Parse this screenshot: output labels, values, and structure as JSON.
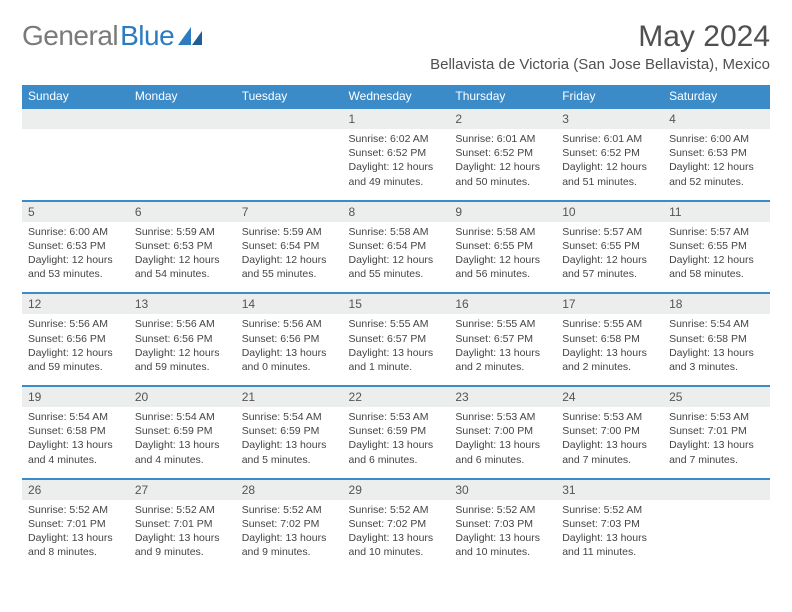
{
  "brand": {
    "part1": "General",
    "part2": "Blue"
  },
  "title": "May 2024",
  "location": "Bellavista de Victoria (San Jose Bellavista), Mexico",
  "dayNames": [
    "Sunday",
    "Monday",
    "Tuesday",
    "Wednesday",
    "Thursday",
    "Friday",
    "Saturday"
  ],
  "colors": {
    "header_bg": "#3b8bc9",
    "header_text": "#ffffff",
    "daynum_bg": "#eceded",
    "border": "#3b8bc9",
    "text": "#444444",
    "title": "#505050",
    "logo_gray": "#7a7a7a",
    "logo_blue": "#2d7bc0",
    "background": "#ffffff"
  },
  "typography": {
    "title_fontsize": 30,
    "location_fontsize": 15,
    "dayhead_fontsize": 12,
    "daynum_fontsize": 12,
    "detail_fontsize": 10.5
  },
  "layout": {
    "columns": 7,
    "rows": 5,
    "cell_width_pct": 14.28
  },
  "weeks": [
    [
      {
        "n": "",
        "sr": "",
        "ss": "",
        "dl": ""
      },
      {
        "n": "",
        "sr": "",
        "ss": "",
        "dl": ""
      },
      {
        "n": "",
        "sr": "",
        "ss": "",
        "dl": ""
      },
      {
        "n": "1",
        "sr": "Sunrise: 6:02 AM",
        "ss": "Sunset: 6:52 PM",
        "dl": "Daylight: 12 hours and 49 minutes."
      },
      {
        "n": "2",
        "sr": "Sunrise: 6:01 AM",
        "ss": "Sunset: 6:52 PM",
        "dl": "Daylight: 12 hours and 50 minutes."
      },
      {
        "n": "3",
        "sr": "Sunrise: 6:01 AM",
        "ss": "Sunset: 6:52 PM",
        "dl": "Daylight: 12 hours and 51 minutes."
      },
      {
        "n": "4",
        "sr": "Sunrise: 6:00 AM",
        "ss": "Sunset: 6:53 PM",
        "dl": "Daylight: 12 hours and 52 minutes."
      }
    ],
    [
      {
        "n": "5",
        "sr": "Sunrise: 6:00 AM",
        "ss": "Sunset: 6:53 PM",
        "dl": "Daylight: 12 hours and 53 minutes."
      },
      {
        "n": "6",
        "sr": "Sunrise: 5:59 AM",
        "ss": "Sunset: 6:53 PM",
        "dl": "Daylight: 12 hours and 54 minutes."
      },
      {
        "n": "7",
        "sr": "Sunrise: 5:59 AM",
        "ss": "Sunset: 6:54 PM",
        "dl": "Daylight: 12 hours and 55 minutes."
      },
      {
        "n": "8",
        "sr": "Sunrise: 5:58 AM",
        "ss": "Sunset: 6:54 PM",
        "dl": "Daylight: 12 hours and 55 minutes."
      },
      {
        "n": "9",
        "sr": "Sunrise: 5:58 AM",
        "ss": "Sunset: 6:55 PM",
        "dl": "Daylight: 12 hours and 56 minutes."
      },
      {
        "n": "10",
        "sr": "Sunrise: 5:57 AM",
        "ss": "Sunset: 6:55 PM",
        "dl": "Daylight: 12 hours and 57 minutes."
      },
      {
        "n": "11",
        "sr": "Sunrise: 5:57 AM",
        "ss": "Sunset: 6:55 PM",
        "dl": "Daylight: 12 hours and 58 minutes."
      }
    ],
    [
      {
        "n": "12",
        "sr": "Sunrise: 5:56 AM",
        "ss": "Sunset: 6:56 PM",
        "dl": "Daylight: 12 hours and 59 minutes."
      },
      {
        "n": "13",
        "sr": "Sunrise: 5:56 AM",
        "ss": "Sunset: 6:56 PM",
        "dl": "Daylight: 12 hours and 59 minutes."
      },
      {
        "n": "14",
        "sr": "Sunrise: 5:56 AM",
        "ss": "Sunset: 6:56 PM",
        "dl": "Daylight: 13 hours and 0 minutes."
      },
      {
        "n": "15",
        "sr": "Sunrise: 5:55 AM",
        "ss": "Sunset: 6:57 PM",
        "dl": "Daylight: 13 hours and 1 minute."
      },
      {
        "n": "16",
        "sr": "Sunrise: 5:55 AM",
        "ss": "Sunset: 6:57 PM",
        "dl": "Daylight: 13 hours and 2 minutes."
      },
      {
        "n": "17",
        "sr": "Sunrise: 5:55 AM",
        "ss": "Sunset: 6:58 PM",
        "dl": "Daylight: 13 hours and 2 minutes."
      },
      {
        "n": "18",
        "sr": "Sunrise: 5:54 AM",
        "ss": "Sunset: 6:58 PM",
        "dl": "Daylight: 13 hours and 3 minutes."
      }
    ],
    [
      {
        "n": "19",
        "sr": "Sunrise: 5:54 AM",
        "ss": "Sunset: 6:58 PM",
        "dl": "Daylight: 13 hours and 4 minutes."
      },
      {
        "n": "20",
        "sr": "Sunrise: 5:54 AM",
        "ss": "Sunset: 6:59 PM",
        "dl": "Daylight: 13 hours and 4 minutes."
      },
      {
        "n": "21",
        "sr": "Sunrise: 5:54 AM",
        "ss": "Sunset: 6:59 PM",
        "dl": "Daylight: 13 hours and 5 minutes."
      },
      {
        "n": "22",
        "sr": "Sunrise: 5:53 AM",
        "ss": "Sunset: 6:59 PM",
        "dl": "Daylight: 13 hours and 6 minutes."
      },
      {
        "n": "23",
        "sr": "Sunrise: 5:53 AM",
        "ss": "Sunset: 7:00 PM",
        "dl": "Daylight: 13 hours and 6 minutes."
      },
      {
        "n": "24",
        "sr": "Sunrise: 5:53 AM",
        "ss": "Sunset: 7:00 PM",
        "dl": "Daylight: 13 hours and 7 minutes."
      },
      {
        "n": "25",
        "sr": "Sunrise: 5:53 AM",
        "ss": "Sunset: 7:01 PM",
        "dl": "Daylight: 13 hours and 7 minutes."
      }
    ],
    [
      {
        "n": "26",
        "sr": "Sunrise: 5:52 AM",
        "ss": "Sunset: 7:01 PM",
        "dl": "Daylight: 13 hours and 8 minutes."
      },
      {
        "n": "27",
        "sr": "Sunrise: 5:52 AM",
        "ss": "Sunset: 7:01 PM",
        "dl": "Daylight: 13 hours and 9 minutes."
      },
      {
        "n": "28",
        "sr": "Sunrise: 5:52 AM",
        "ss": "Sunset: 7:02 PM",
        "dl": "Daylight: 13 hours and 9 minutes."
      },
      {
        "n": "29",
        "sr": "Sunrise: 5:52 AM",
        "ss": "Sunset: 7:02 PM",
        "dl": "Daylight: 13 hours and 10 minutes."
      },
      {
        "n": "30",
        "sr": "Sunrise: 5:52 AM",
        "ss": "Sunset: 7:03 PM",
        "dl": "Daylight: 13 hours and 10 minutes."
      },
      {
        "n": "31",
        "sr": "Sunrise: 5:52 AM",
        "ss": "Sunset: 7:03 PM",
        "dl": "Daylight: 13 hours and 11 minutes."
      },
      {
        "n": "",
        "sr": "",
        "ss": "",
        "dl": ""
      }
    ]
  ]
}
